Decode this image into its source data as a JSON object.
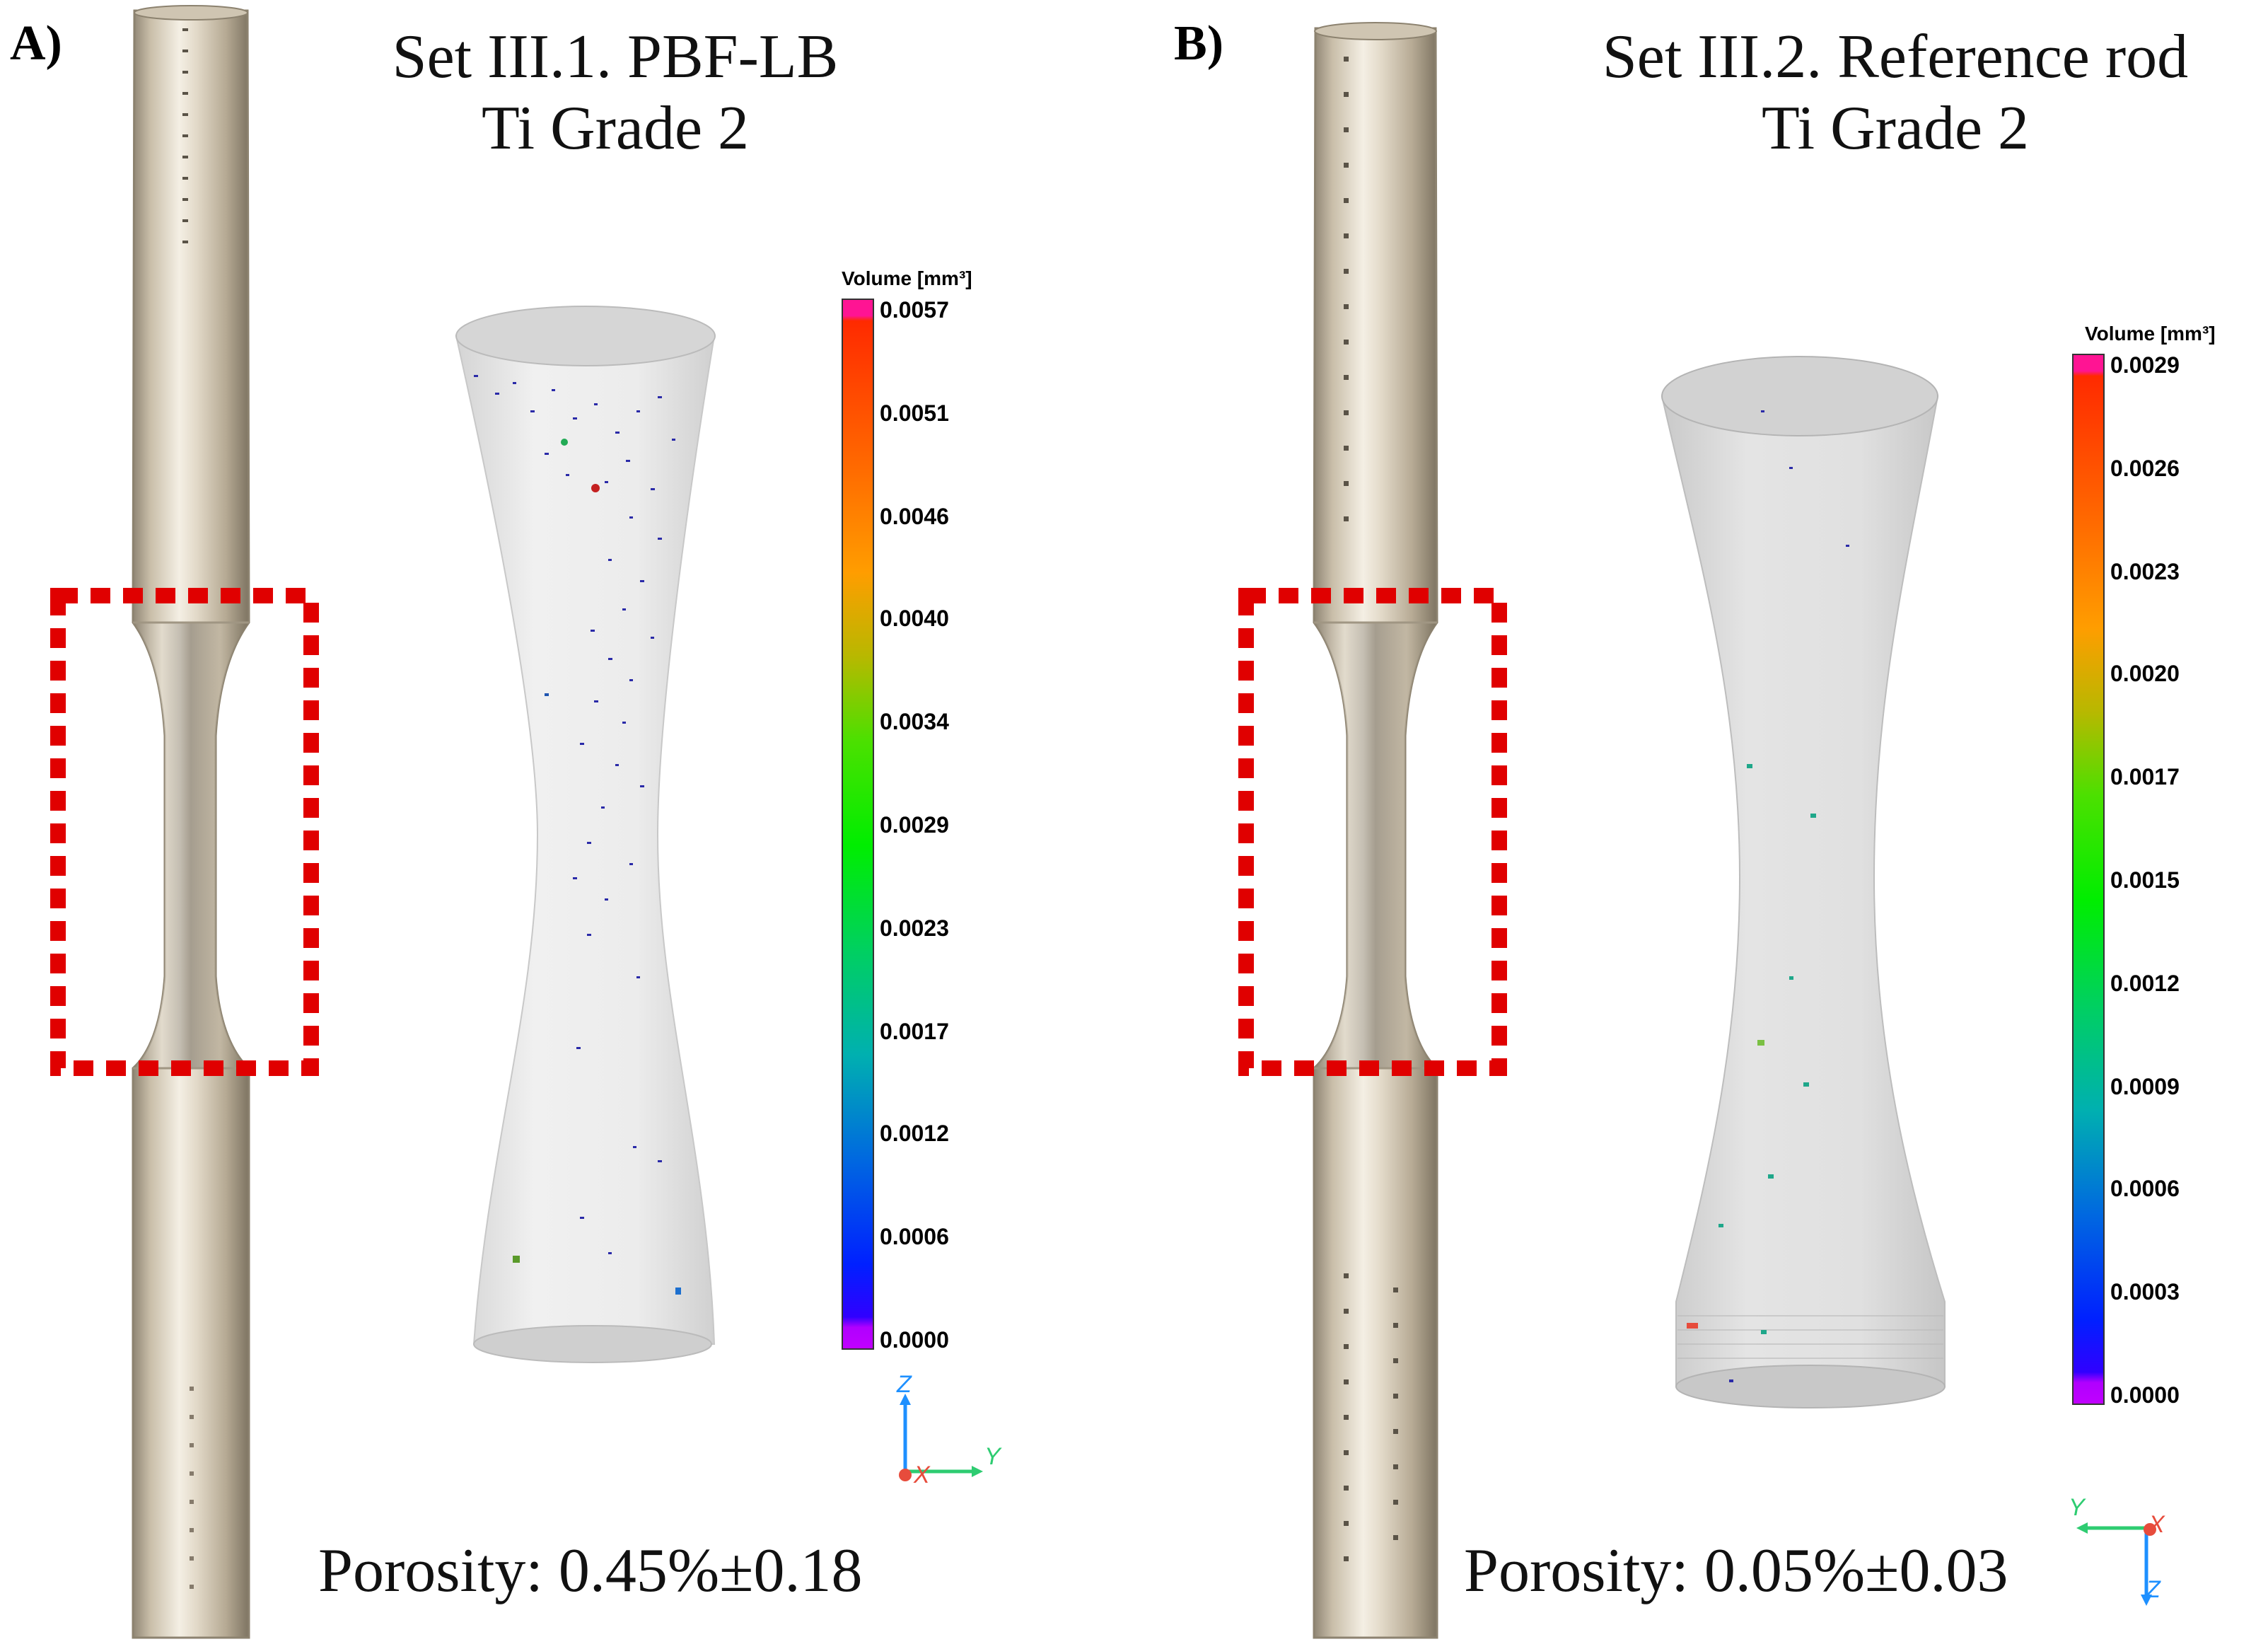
{
  "panel_a": {
    "label": "A)",
    "title_line1": "Set III.1. PBF-LB",
    "title_line2": "Ti Grade 2",
    "porosity": "Porosity: 0.45%±0.18",
    "colorbar": {
      "title": "Volume [mm³]",
      "ticks": [
        "0.0057",
        "0.0051",
        "0.0046",
        "0.0040",
        "0.0034",
        "0.0029",
        "0.0023",
        "0.0017",
        "0.0012",
        "0.0006",
        "0.0000"
      ]
    },
    "axes": {
      "z": "Z",
      "x": "X",
      "y": "Y"
    }
  },
  "panel_b": {
    "label": "B)",
    "title_line1": "Set III.2. Reference rod",
    "title_line2": "Ti Grade 2",
    "porosity": "Porosity: 0.05%±0.03",
    "colorbar": {
      "title": "Volume [mm³]",
      "ticks": [
        "0.0029",
        "0.0026",
        "0.0023",
        "0.0020",
        "0.0017",
        "0.0015",
        "0.0012",
        "0.0009",
        "0.0006",
        "0.0003",
        "0.0000"
      ]
    },
    "axes": {
      "z": "Z",
      "x": "X",
      "y": "Y"
    }
  },
  "colors": {
    "highlight_box": "#e00000",
    "rod_metal": "#d9cfbe",
    "ct_shell": "#e4e4e4"
  }
}
